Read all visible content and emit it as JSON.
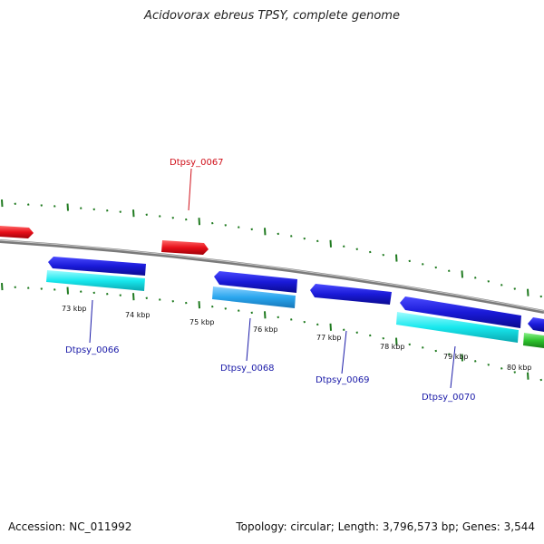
{
  "title": "Acidovorax ebreus TPSY, complete genome",
  "footer": {
    "accession": "Accession: NC_011992",
    "summary": "Topology: circular; Length: 3,796,573 bp; Genes: 3,544"
  },
  "colors": {
    "backbone": "#8a8a8a",
    "tick_outer": "#1f7a1f",
    "tick_inner": "#1f7a1f",
    "red_gene": "#e8101a",
    "blue_gene": "#1a1ad8",
    "cyan_gene": "#18e8ee",
    "lightblue_gene": "#2aa6ee",
    "green_gene": "#2ec32e",
    "label_red": "#d0101a",
    "label_blue": "#1a1aa8"
  },
  "scale": {
    "tick_labels": [
      "73 kbp",
      "74 kbp",
      "75 kbp",
      "76 kbp",
      "77 kbp",
      "78 kbp",
      "79 kbp",
      "80 kbp"
    ]
  },
  "gene_labels": [
    {
      "text": "Dtpsy_0067",
      "color": "red"
    },
    {
      "text": "Dtpsy_0066",
      "color": "blue"
    },
    {
      "text": "Dtpsy_0068",
      "color": "blue"
    },
    {
      "text": "Dtpsy_0069",
      "color": "blue"
    },
    {
      "text": "Dtpsy_0070",
      "color": "blue"
    }
  ]
}
